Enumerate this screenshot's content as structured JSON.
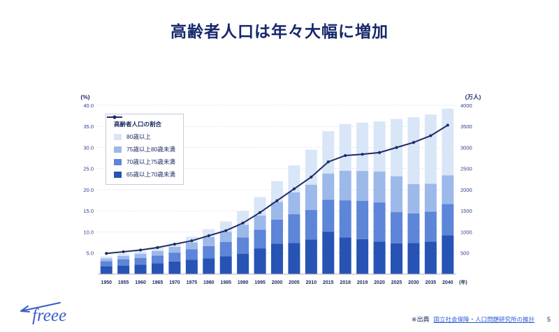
{
  "slide": {
    "title": "高齢者人口は年々大幅に増加",
    "page_number": "5",
    "source_prefix": "※出典",
    "source_link": "国立社会保障・人口問題研究所の推計",
    "logo_text": "freee"
  },
  "chart_data": {
    "type": "bar",
    "subtype": "stacked-bar-with-line",
    "categories": [
      "1950",
      "1955",
      "1960",
      "1965",
      "1970",
      "1975",
      "1980",
      "1985",
      "1990",
      "1995",
      "2000",
      "2005",
      "2010",
      "2015",
      "2018",
      "2019",
      "2020",
      "2025",
      "2030",
      "2035",
      "2040"
    ],
    "x_axis_suffix": "(年)",
    "stack_series": [
      {
        "name": "65歳以上70歳未満",
        "color": "#2753b5",
        "values": [
          187,
          204,
          225,
          255,
          300,
          340,
          375,
          425,
          480,
          610,
          720,
          740,
          820,
          1000,
          870,
          830,
          770,
          730,
          740,
          770,
          920
        ]
      },
      {
        "name": "70歳以上75歳未満",
        "color": "#5d85d8",
        "values": [
          117,
          148,
          160,
          185,
          210,
          250,
          290,
          335,
          390,
          440,
          570,
          680,
          700,
          760,
          880,
          905,
          930,
          740,
          700,
          712,
          740
        ]
      },
      {
        "name": "75歳以上80歳未満",
        "color": "#9db9ea",
        "values": [
          66,
          79,
          95,
          110,
          135,
          160,
          215,
          245,
          300,
          340,
          420,
          520,
          600,
          625,
          700,
          710,
          730,
          850,
          695,
          660,
          683
        ]
      },
      {
        "name": "80歳以上",
        "color": "#d9e6f8",
        "values": [
          46,
          55,
          60,
          74,
          94,
          137,
          185,
          242,
          323,
          438,
          494,
          636,
          828,
          1002,
          1108,
          1144,
          1189,
          1357,
          1581,
          1640,
          1578
        ]
      }
    ],
    "line_series": {
      "name": "高齢者人口の割合",
      "color": "#1c2c63",
      "values": [
        4.9,
        5.3,
        5.7,
        6.3,
        7.1,
        7.9,
        9.1,
        10.3,
        12.1,
        14.6,
        17.4,
        20.2,
        23.0,
        26.6,
        28.1,
        28.4,
        28.8,
        30.0,
        31.2,
        32.8,
        35.3
      ]
    },
    "left_axis": {
      "label": "(%)",
      "min": 0,
      "max": 40,
      "step": 5
    },
    "right_axis": {
      "label": "(万人)",
      "min": 0,
      "max": 4000,
      "step": 500
    },
    "grid": "dotted-horizontal",
    "legend_position": "top-left-inside"
  }
}
